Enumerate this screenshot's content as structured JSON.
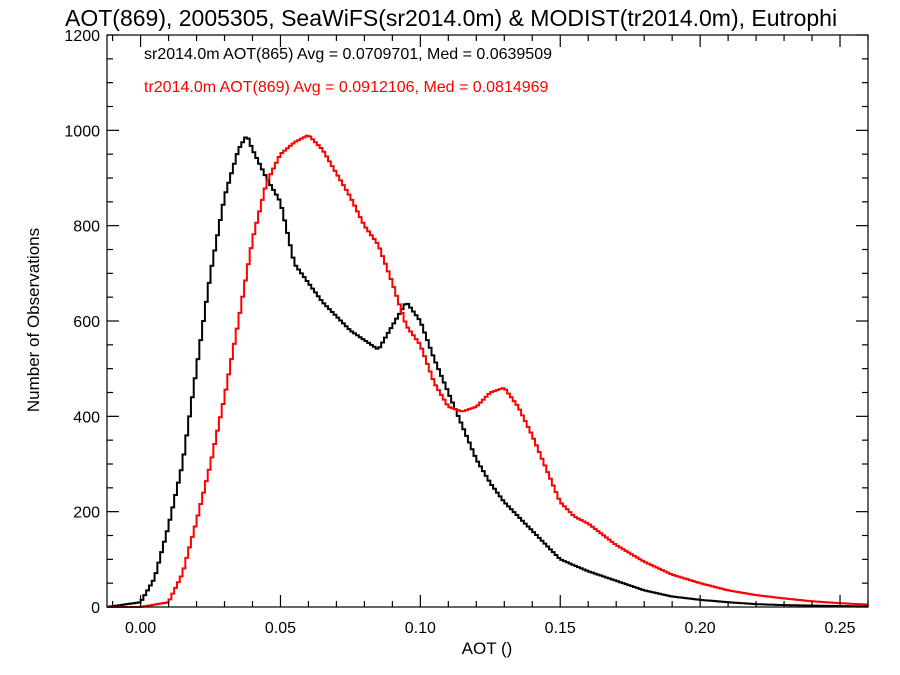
{
  "chart_data": {
    "type": "line",
    "style": "step-histogram",
    "title": "AOT(869), 2005305, SeaWiFS(sr2014.0m) & MODIST(tr2014.0m), Eutrophi",
    "xlabel": "AOT ()",
    "ylabel": "Number of Observations",
    "xlim": [
      -0.012,
      0.26
    ],
    "ylim": [
      0,
      1200
    ],
    "xticks": [
      0.0,
      0.05,
      0.1,
      0.15,
      0.2,
      0.25
    ],
    "xtick_labels": [
      "0.00",
      "0.05",
      "0.10",
      "0.15",
      "0.20",
      "0.25"
    ],
    "yticks": [
      0,
      200,
      400,
      600,
      800,
      1000,
      1200
    ],
    "ytick_labels": [
      "0",
      "200",
      "400",
      "600",
      "800",
      "1000",
      "1200"
    ],
    "grid": false,
    "legend_position": "top-left",
    "series": [
      {
        "name": "sr2014.0m AOT(865) Avg = 0.0709701, Med = 0.0639509",
        "color": "#000000",
        "x": [
          -0.012,
          0.0,
          0.005,
          0.01,
          0.015,
          0.02,
          0.025,
          0.03,
          0.035,
          0.038,
          0.04,
          0.045,
          0.05,
          0.055,
          0.06,
          0.065,
          0.07,
          0.075,
          0.08,
          0.085,
          0.09,
          0.095,
          0.1,
          0.105,
          0.11,
          0.115,
          0.12,
          0.125,
          0.13,
          0.14,
          0.15,
          0.16,
          0.17,
          0.18,
          0.19,
          0.2,
          0.21,
          0.22,
          0.23,
          0.24,
          0.25,
          0.26
        ],
        "values": [
          0,
          10,
          60,
          170,
          300,
          500,
          700,
          860,
          960,
          990,
          960,
          900,
          850,
          720,
          680,
          640,
          610,
          580,
          560,
          540,
          590,
          640,
          600,
          520,
          450,
          380,
          310,
          260,
          220,
          160,
          100,
          75,
          55,
          35,
          22,
          15,
          10,
          6,
          4,
          3,
          2,
          1
        ]
      },
      {
        "name": "tr2014.0m AOT(869) Avg = 0.0912106, Med = 0.0814969",
        "color": "#ff0000",
        "x": [
          -0.012,
          0.0,
          0.01,
          0.015,
          0.02,
          0.025,
          0.03,
          0.035,
          0.04,
          0.045,
          0.05,
          0.055,
          0.06,
          0.065,
          0.07,
          0.075,
          0.08,
          0.085,
          0.09,
          0.095,
          0.1,
          0.105,
          0.11,
          0.115,
          0.12,
          0.125,
          0.13,
          0.135,
          0.14,
          0.145,
          0.15,
          0.155,
          0.16,
          0.17,
          0.18,
          0.19,
          0.2,
          0.21,
          0.22,
          0.23,
          0.24,
          0.25,
          0.26
        ],
        "values": [
          0,
          0,
          10,
          70,
          180,
          300,
          440,
          600,
          770,
          890,
          950,
          975,
          990,
          960,
          910,
          860,
          800,
          760,
          680,
          590,
          550,
          470,
          420,
          410,
          420,
          450,
          460,
          420,
          360,
          290,
          220,
          190,
          175,
          130,
          95,
          68,
          50,
          35,
          25,
          18,
          12,
          8,
          5
        ]
      }
    ]
  }
}
